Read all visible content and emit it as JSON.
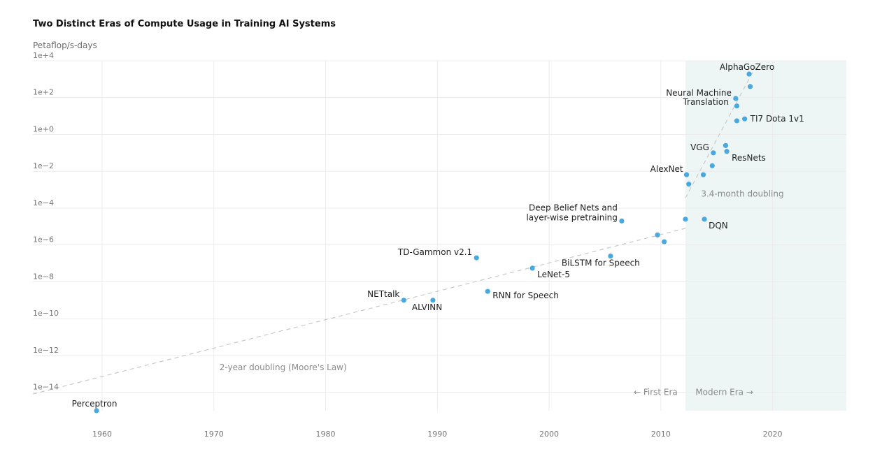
{
  "chart_data": {
    "type": "scatter",
    "title": "Two Distinct Eras of Compute Usage in Training AI Systems",
    "ylabel": "Petaflop/s-days",
    "y_scale": "log",
    "xlim": [
      1953.8,
      2026.6
    ],
    "ylim": [
      1e-15,
      10000.0
    ],
    "x_ticks": [
      1960,
      1970,
      1980,
      1990,
      2000,
      2010,
      2020
    ],
    "y_ticks": [
      {
        "value": 10000.0,
        "label": "1e+4"
      },
      {
        "value": 100.0,
        "label": "1e+2"
      },
      {
        "value": 1.0,
        "label": "1e+0"
      },
      {
        "value": 0.01,
        "label": "1e−2"
      },
      {
        "value": 0.0001,
        "label": "1e−4"
      },
      {
        "value": 1e-06,
        "label": "1e−6"
      },
      {
        "value": 1e-08,
        "label": "1e−8"
      },
      {
        "value": 1e-10,
        "label": "1e−10"
      },
      {
        "value": 1e-12,
        "label": "1e−12"
      },
      {
        "value": 1e-14,
        "label": "1e−14"
      }
    ],
    "grid": true,
    "marker_color": "#4aa8e0",
    "modern_era_shade": "#eef5f5",
    "modern_era_start": 2012.2,
    "points": [
      {
        "x": 1959.5,
        "y": 1e-15,
        "label": "Perceptron"
      },
      {
        "x": 1987.0,
        "y": 1e-09,
        "label": "NETtalk"
      },
      {
        "x": 1989.6,
        "y": 1e-09,
        "label": "ALVINN"
      },
      {
        "x": 1993.5,
        "y": 2e-07,
        "label": "TD-Gammon v2.1"
      },
      {
        "x": 1994.5,
        "y": 3e-09,
        "label": "RNN for Speech"
      },
      {
        "x": 1998.5,
        "y": 5.5e-08,
        "label": "LeNet-5"
      },
      {
        "x": 2005.5,
        "y": 2.5e-07,
        "label": "BiLSTM for Speech"
      },
      {
        "x": 2006.5,
        "y": 2e-05,
        "label": "Deep Belief Nets and layer-wise pretraining"
      },
      {
        "x": 2009.7,
        "y": 3.5e-06,
        "label": ""
      },
      {
        "x": 2010.3,
        "y": 1.5e-06,
        "label": ""
      },
      {
        "x": 2012.2,
        "y": 2.5e-05,
        "label": ""
      },
      {
        "x": 2012.3,
        "y": 0.0065,
        "label": "AlexNet"
      },
      {
        "x": 2012.5,
        "y": 0.002,
        "label": ""
      },
      {
        "x": 2013.8,
        "y": 0.0065,
        "label": ""
      },
      {
        "x": 2013.9,
        "y": 2.5e-05,
        "label": "DQN"
      },
      {
        "x": 2014.6,
        "y": 0.02,
        "label": ""
      },
      {
        "x": 2014.7,
        "y": 0.1,
        "label": "VGG"
      },
      {
        "x": 2015.8,
        "y": 0.25,
        "label": ""
      },
      {
        "x": 2015.9,
        "y": 0.12,
        "label": "ResNets"
      },
      {
        "x": 2016.7,
        "y": 90.0,
        "label": "Neural Machine Translation"
      },
      {
        "x": 2016.8,
        "y": 35.0,
        "label": ""
      },
      {
        "x": 2016.8,
        "y": 5.5,
        "label": ""
      },
      {
        "x": 2017.5,
        "y": 7.0,
        "label": "TI7 Dota 1v1"
      },
      {
        "x": 2017.9,
        "y": 1900.0,
        "label": "AlphaGoZero"
      },
      {
        "x": 2018.0,
        "y": 400.0,
        "label": ""
      }
    ],
    "trend_lines": [
      {
        "name": "2-year doubling (Moore's Law)",
        "x0": 1953.8,
        "y0": 8e-15,
        "x1": 2012.2,
        "y1": 8e-06
      },
      {
        "name": "3.4-month doubling",
        "x0": 2012.2,
        "y0": 0.00035,
        "x1": 2018.5,
        "y1": 5000.0
      }
    ],
    "annotations": [
      {
        "text": "2-year doubling (Moore's Law)",
        "x": 1970.5,
        "y": 2.2e-13,
        "anchor": "start"
      },
      {
        "text": "3.4-month doubling",
        "x": 2013.6,
        "y": 0.0006,
        "anchor": "start"
      },
      {
        "text": "← First Era",
        "x": 2011.5,
        "y": 1e-14,
        "anchor": "end"
      },
      {
        "text": "Modern Era →",
        "x": 2013.1,
        "y": 1e-14,
        "anchor": "start"
      }
    ]
  }
}
